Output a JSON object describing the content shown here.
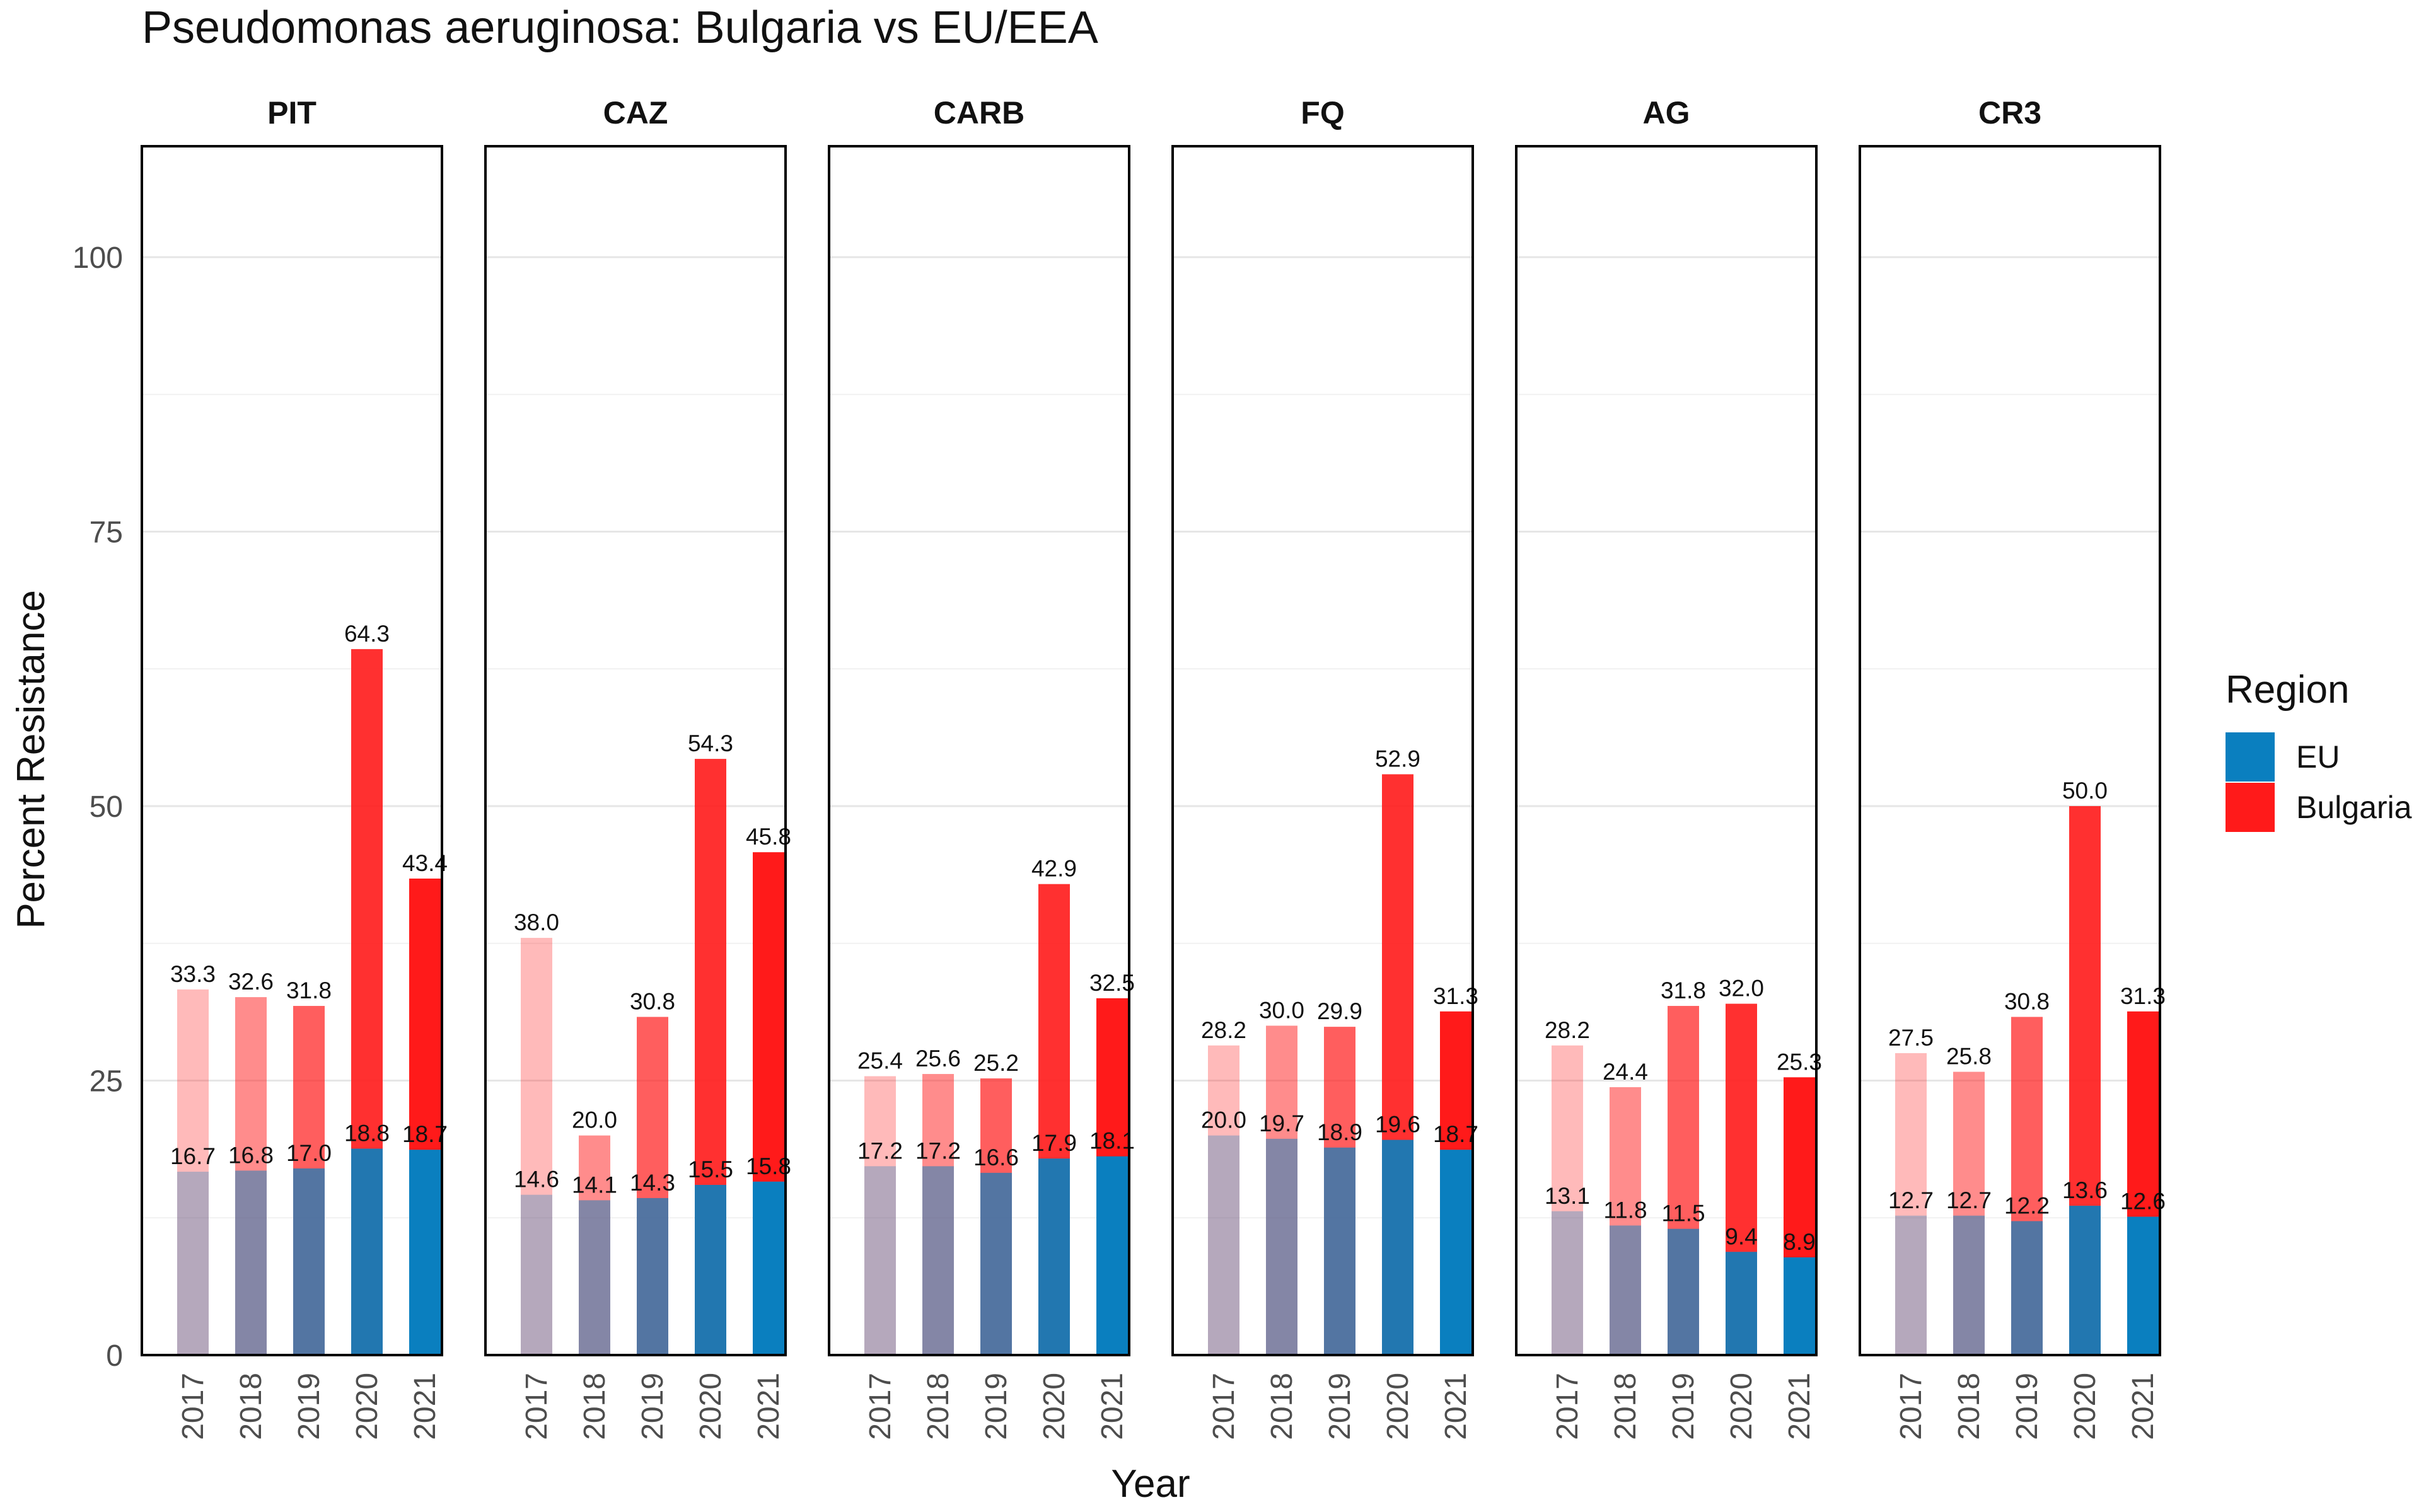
{
  "chart_data": {
    "type": "bar",
    "title": "Pseudomonas aeruginosa: Bulgaria vs EU/EEA",
    "xlabel": "Year",
    "ylabel": "Percent Resistance",
    "ylim": [
      0,
      110
    ],
    "yticks": [
      "0",
      "25",
      "50",
      "75",
      "100"
    ],
    "ytick_values": [
      0,
      25,
      50,
      75,
      100
    ],
    "grid": true,
    "legend": {
      "title": "Region",
      "position": "right",
      "entries": [
        {
          "name": "EU",
          "color": "#0a7fbf"
        },
        {
          "name": "Bulgaria",
          "color": "#ff1a1a"
        }
      ]
    },
    "categories": [
      "2017",
      "2018",
      "2019",
      "2020",
      "2021"
    ],
    "year_alpha": [
      0.3,
      0.5,
      0.7,
      0.9,
      1.0
    ],
    "facets": [
      {
        "name": "PIT",
        "eu": [
          "16.7",
          "16.8",
          "17.0",
          "18.8",
          "18.7"
        ],
        "bulgaria": [
          "33.3",
          "32.6",
          "31.8",
          "64.3",
          "43.4"
        ]
      },
      {
        "name": "CAZ",
        "eu": [
          "14.6",
          "14.1",
          "14.3",
          "15.5",
          "15.8"
        ],
        "bulgaria": [
          "38.0",
          "20.0",
          "30.8",
          "54.3",
          "45.8"
        ]
      },
      {
        "name": "CARB",
        "eu": [
          "17.2",
          "17.2",
          "16.6",
          "17.9",
          "18.1"
        ],
        "bulgaria": [
          "25.4",
          "25.6",
          "25.2",
          "42.9",
          "32.5"
        ]
      },
      {
        "name": "FQ",
        "eu": [
          "20.0",
          "19.7",
          "18.9",
          "19.6",
          "18.7"
        ],
        "bulgaria": [
          "28.2",
          "30.0",
          "29.9",
          "52.9",
          "31.3"
        ]
      },
      {
        "name": "AG",
        "eu": [
          "13.1",
          "11.8",
          "11.5",
          "9.4",
          "8.9"
        ],
        "bulgaria": [
          "28.2",
          "24.4",
          "31.8",
          "32.0",
          "25.3"
        ]
      },
      {
        "name": "CR3",
        "eu": [
          "12.7",
          "12.7",
          "12.2",
          "13.6",
          "12.6"
        ],
        "bulgaria": [
          "27.5",
          "25.8",
          "30.8",
          "50.0",
          "31.3"
        ]
      }
    ]
  }
}
